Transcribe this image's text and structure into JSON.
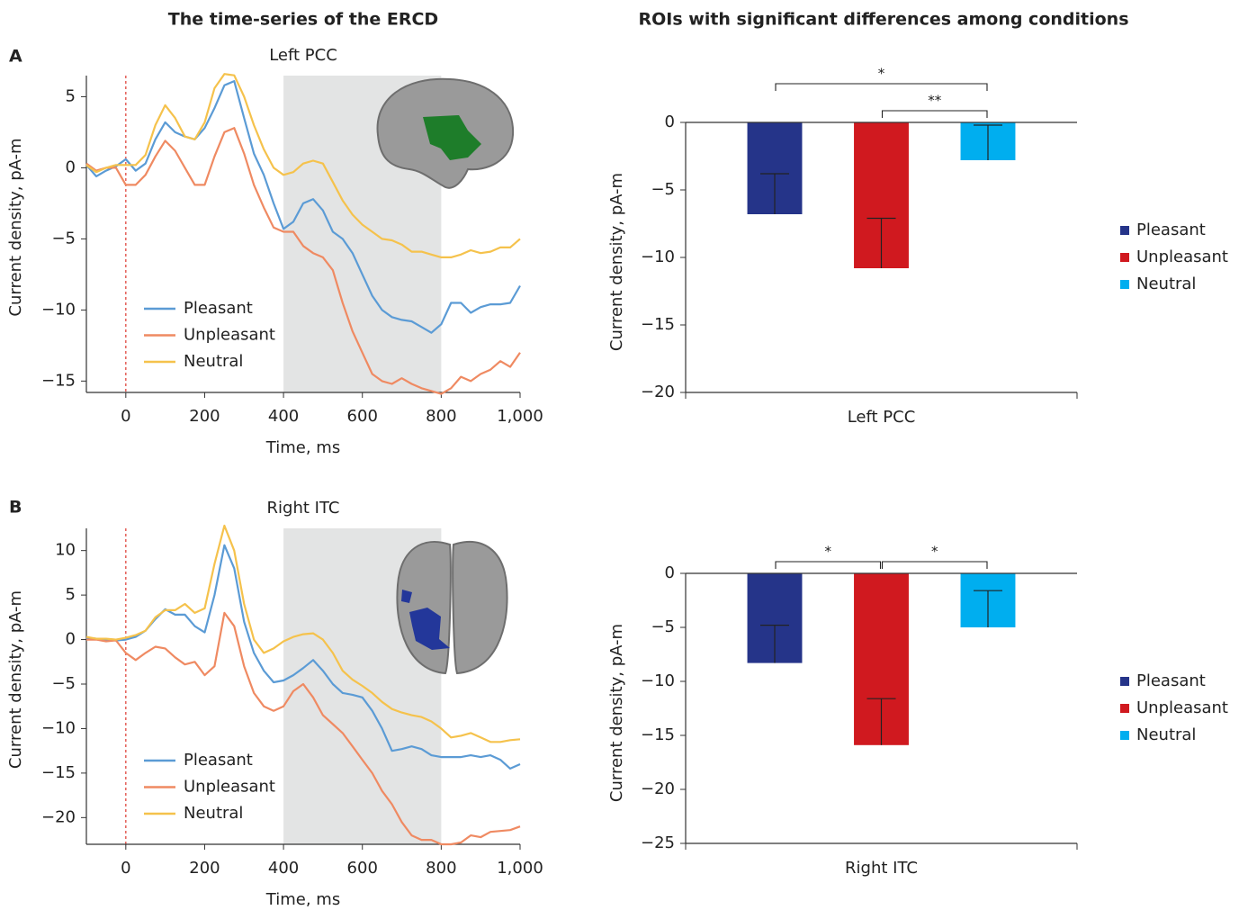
{
  "headers": [
    "The time-series of the ERCD",
    "ROIs with significant differences among conditions"
  ],
  "panel_labels": [
    "A",
    "B"
  ],
  "chart_data": [
    {
      "type": "line",
      "title": "Left PCC",
      "xlabel": "Time, ms",
      "ylabel": "Current density, pA-m",
      "x": [
        -100,
        -75,
        -50,
        -25,
        0,
        25,
        50,
        75,
        100,
        125,
        150,
        175,
        200,
        225,
        250,
        275,
        300,
        325,
        350,
        375,
        400,
        425,
        450,
        475,
        500,
        525,
        550,
        575,
        600,
        625,
        650,
        675,
        700,
        725,
        750,
        775,
        800,
        825,
        850,
        875,
        900,
        925,
        950,
        975,
        1000
      ],
      "series": [
        {
          "name": "Pleasant",
          "color": "#5b9bd5",
          "values": [
            0.2,
            -0.6,
            -0.2,
            0.1,
            0.6,
            -0.2,
            0.3,
            2,
            3.2,
            2.5,
            2.2,
            2,
            2.8,
            4.2,
            5.8,
            6.1,
            3.5,
            1,
            -0.5,
            -2.5,
            -4.3,
            -3.8,
            -2.5,
            -2.2,
            -3,
            -4.5,
            -5,
            -6,
            -7.5,
            -9,
            -10,
            -10.5,
            -10.7,
            -10.8,
            -11.2,
            -11.6,
            -11,
            -9.5,
            -9.5,
            -10.2,
            -9.8,
            -9.6,
            -9.6,
            -9.5,
            -8.3
          ]
        },
        {
          "name": "Unpleasant",
          "color": "#ef8a62",
          "values": [
            0.3,
            -0.2,
            0,
            0,
            -1.2,
            -1.2,
            -0.5,
            0.8,
            1.9,
            1.2,
            0,
            -1.2,
            -1.2,
            0.8,
            2.5,
            2.8,
            1,
            -1.2,
            -2.8,
            -4.2,
            -4.5,
            -4.5,
            -5.5,
            -6,
            -6.3,
            -7.2,
            -9.5,
            -11.5,
            -13,
            -14.5,
            -15,
            -15.2,
            -14.8,
            -15.2,
            -15.5,
            -15.7,
            -15.9,
            -15.5,
            -14.7,
            -15,
            -14.5,
            -14.2,
            -13.6,
            -14,
            -13
          ]
        },
        {
          "name": "Neutral",
          "color": "#f5c24c",
          "values": [
            0.2,
            -0.3,
            0,
            0.2,
            0.2,
            0.2,
            0.9,
            3,
            4.4,
            3.5,
            2.2,
            2,
            3.2,
            5.6,
            6.6,
            6.5,
            5,
            3,
            1.3,
            0,
            -0.5,
            -0.3,
            0.3,
            0.5,
            0.3,
            -1,
            -2.3,
            -3.3,
            -4,
            -4.5,
            -5,
            -5.1,
            -5.4,
            -5.9,
            -5.9,
            -6.1,
            -6.3,
            -6.3,
            -6.1,
            -5.8,
            -6,
            -5.9,
            -5.6,
            -5.6,
            -5
          ]
        }
      ],
      "xlim": [
        -100,
        1000
      ],
      "xticks": [
        0,
        200,
        400,
        600,
        800,
        {
          "value": 1000,
          "label": "1,000"
        }
      ],
      "ylim": [
        -15.8,
        6.8
      ],
      "yticks": [
        5,
        0,
        {
          "value": -5,
          "label": "−5"
        },
        {
          "value": -10,
          "label": "−10"
        },
        {
          "value": -15,
          "label": "−15"
        }
      ],
      "shaded": [
        400,
        800
      ],
      "vline": 0,
      "legend": "lower left"
    },
    {
      "type": "line",
      "title": "Right ITC",
      "xlabel": "Time, ms",
      "ylabel": "Current density, pA-m",
      "x": [
        -100,
        -75,
        -50,
        -25,
        0,
        25,
        50,
        75,
        100,
        125,
        150,
        175,
        200,
        225,
        250,
        275,
        300,
        325,
        350,
        375,
        400,
        425,
        450,
        475,
        500,
        525,
        550,
        575,
        600,
        625,
        650,
        675,
        700,
        725,
        750,
        775,
        800,
        825,
        850,
        875,
        900,
        925,
        950,
        975,
        1000
      ],
      "series": [
        {
          "name": "Pleasant",
          "color": "#5b9bd5",
          "values": [
            0.2,
            0.1,
            0,
            -0.1,
            0,
            0.3,
            1,
            2.3,
            3.4,
            2.8,
            2.8,
            1.5,
            0.8,
            5,
            10.6,
            8,
            2,
            -1.5,
            -3.5,
            -4.8,
            -4.6,
            -4,
            -3.2,
            -2.3,
            -3.5,
            -5,
            -6,
            -6.2,
            -6.5,
            -8,
            -10,
            -12.5,
            -12.3,
            -12,
            -12.3,
            -13,
            -13.2,
            -13.2,
            -13.2,
            -13,
            -13.2,
            -13,
            -13.5,
            -14.5,
            -14
          ]
        },
        {
          "name": "Unpleasant",
          "color": "#ef8a62",
          "values": [
            0,
            0,
            -0.2,
            -0.1,
            -1.5,
            -2.3,
            -1.5,
            -0.8,
            -1,
            -2,
            -2.8,
            -2.5,
            -4,
            -3,
            3,
            1.5,
            -3,
            -6,
            -7.5,
            -8,
            -7.5,
            -5.8,
            -5,
            -6.5,
            -8.5,
            -9.5,
            -10.5,
            -12,
            -13.5,
            -15,
            -17,
            -18.5,
            -20.5,
            -22,
            -22.5,
            -22.5,
            -23,
            -23,
            -22.8,
            -22,
            -22.2,
            -21.6,
            -21.5,
            -21.4,
            -21
          ]
        },
        {
          "name": "Neutral",
          "color": "#f5c24c",
          "values": [
            0.3,
            0.1,
            0.1,
            0,
            0.2,
            0.5,
            1,
            2.5,
            3.3,
            3.3,
            4,
            3,
            3.5,
            8.5,
            12.8,
            10,
            4,
            0,
            -1.5,
            -1,
            -0.2,
            0.3,
            0.6,
            0.7,
            0,
            -1.5,
            -3.5,
            -4.5,
            -5.2,
            -6,
            -7,
            -7.8,
            -8.2,
            -8.5,
            -8.7,
            -9.2,
            -10,
            -11,
            -10.8,
            -10.5,
            -11,
            -11.5,
            -11.5,
            -11.3,
            -11.2
          ]
        }
      ],
      "xlim": [
        -100,
        1000
      ],
      "xticks": [
        0,
        200,
        400,
        600,
        800,
        {
          "value": 1000,
          "label": "1,000"
        }
      ],
      "ylim": [
        -23,
        13
      ],
      "yticks": [
        10,
        5,
        0,
        {
          "value": -5,
          "label": "−5"
        },
        {
          "value": -10,
          "label": "−10"
        },
        {
          "value": -15,
          "label": "−15"
        },
        {
          "value": -20,
          "label": "−20"
        }
      ],
      "shaded": [
        400,
        800
      ],
      "vline": 0,
      "legend": "lower left"
    },
    {
      "type": "bar",
      "ylabel": "Current density, pA-m",
      "categories": [
        "Left PCC"
      ],
      "series": [
        {
          "name": "Pleasant",
          "color": "#253489",
          "values": [
            -6.8
          ],
          "errors": [
            3.0
          ]
        },
        {
          "name": "Unpleasant",
          "color": "#d0191f",
          "values": [
            -10.8
          ],
          "errors": [
            3.7
          ]
        },
        {
          "name": "Neutral",
          "color": "#00aeef",
          "values": [
            -2.8
          ],
          "errors": [
            2.6
          ]
        }
      ],
      "ylim": [
        -20,
        0
      ],
      "yticks": [
        0,
        {
          "value": -5,
          "label": "−5"
        },
        {
          "value": -10,
          "label": "−10"
        },
        {
          "value": -15,
          "label": "−15"
        },
        {
          "value": -20,
          "label": "−20"
        }
      ],
      "significance": [
        {
          "pair": [
            "Pleasant",
            "Neutral"
          ],
          "label": "*"
        },
        {
          "pair": [
            "Unpleasant",
            "Neutral"
          ],
          "label": "**"
        }
      ],
      "legend": "right"
    },
    {
      "type": "bar",
      "ylabel": "Current density, pA-m",
      "categories": [
        "Right ITC"
      ],
      "series": [
        {
          "name": "Pleasant",
          "color": "#253489",
          "values": [
            -8.3
          ],
          "errors": [
            3.5
          ]
        },
        {
          "name": "Unpleasant",
          "color": "#d0191f",
          "values": [
            -15.9
          ],
          "errors": [
            4.3
          ]
        },
        {
          "name": "Neutral",
          "color": "#00aeef",
          "values": [
            -5.0
          ],
          "errors": [
            3.4
          ]
        }
      ],
      "ylim": [
        -25,
        0
      ],
      "yticks": [
        0,
        {
          "value": -5,
          "label": "−5"
        },
        {
          "value": -10,
          "label": "−10"
        },
        {
          "value": -15,
          "label": "−15"
        },
        {
          "value": -20,
          "label": "−20"
        },
        {
          "value": -25,
          "label": "−25"
        }
      ],
      "significance": [
        {
          "pair": [
            "Pleasant",
            "Unpleasant"
          ],
          "label": "*"
        },
        {
          "pair": [
            "Unpleasant",
            "Neutral"
          ],
          "label": "*"
        }
      ],
      "legend": "right"
    }
  ]
}
